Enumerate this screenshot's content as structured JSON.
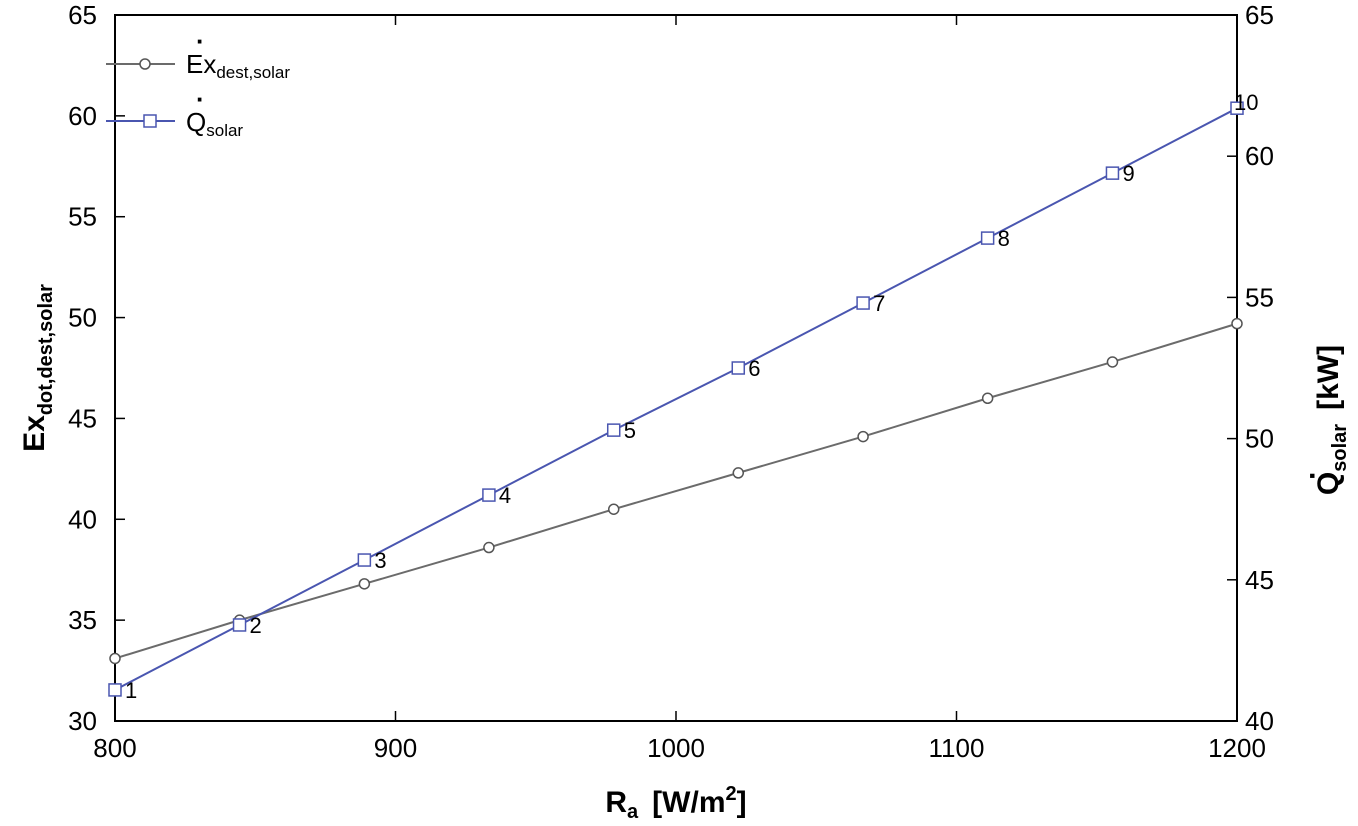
{
  "chart_data": {
    "type": "line",
    "x_axis": {
      "title": "R",
      "title_sub": "a",
      "title_unit": "[W/m",
      "title_unit_sup": "2",
      "title_unit_end": "]",
      "range": [
        800,
        1200
      ],
      "ticks": [
        800,
        900,
        1000,
        1100,
        1200
      ]
    },
    "y_left": {
      "title": "Ex",
      "title_sub": "dot,dest,solar",
      "range": [
        30,
        65
      ],
      "ticks": [
        30,
        35,
        40,
        45,
        50,
        55,
        60,
        65
      ]
    },
    "y_right": {
      "title": "Q",
      "title_sub": "solar",
      "title_unit": "[kW]",
      "range": [
        40,
        65
      ],
      "ticks": [
        40,
        45,
        50,
        55,
        60,
        65
      ]
    },
    "legend_position": "top-left",
    "grid": false,
    "series": [
      {
        "name": "Ex",
        "name_sub": "dest,solar",
        "color": "#6b6b6b",
        "marker": "circle",
        "axis": "left",
        "x": [
          800,
          844.4,
          888.9,
          933.3,
          977.8,
          1022.2,
          1066.7,
          1111.1,
          1155.6,
          1200
        ],
        "y": [
          33.1,
          35.0,
          36.8,
          38.6,
          40.5,
          42.3,
          44.1,
          46.0,
          47.8,
          49.7
        ]
      },
      {
        "name": "Q",
        "name_sub": "solar",
        "color": "#4a56b0",
        "marker": "square",
        "axis": "right",
        "x": [
          800,
          844.4,
          888.9,
          933.3,
          977.8,
          1022.2,
          1066.7,
          1111.1,
          1155.6,
          1200
        ],
        "y": [
          41.1,
          43.4,
          45.7,
          48.0,
          50.3,
          52.5,
          54.8,
          57.1,
          59.4,
          61.7
        ],
        "point_labels": [
          "1",
          "2",
          "3",
          "4",
          "5",
          "6",
          "7",
          "8",
          "9",
          "10"
        ]
      }
    ]
  }
}
